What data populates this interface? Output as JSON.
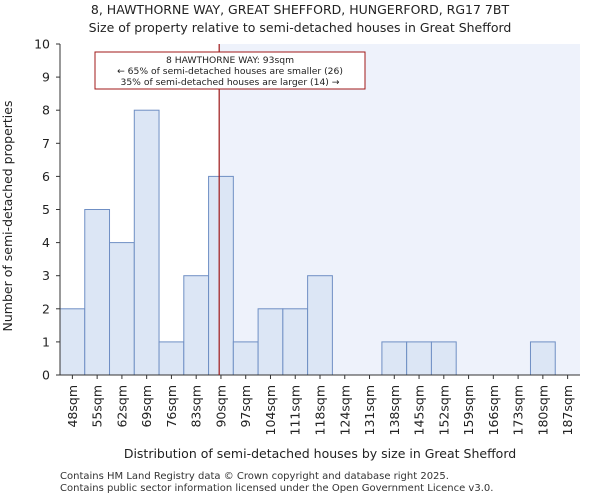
{
  "chart_data": {
    "type": "bar",
    "title": "8, HAWTHORNE WAY, GREAT SHEFFORD, HUNGERFORD, RG17 7BT",
    "subtitle": "Size of property relative to semi-detached houses in Great Shefford",
    "xlabel": "Distribution of semi-detached houses by size in Great Shefford",
    "ylabel": "Number of semi-detached properties",
    "categories": [
      "48sqm",
      "55sqm",
      "62sqm",
      "69sqm",
      "76sqm",
      "83sqm",
      "90sqm",
      "97sqm",
      "104sqm",
      "111sqm",
      "118sqm",
      "124sqm",
      "131sqm",
      "138sqm",
      "145sqm",
      "152sqm",
      "159sqm",
      "166sqm",
      "173sqm",
      "180sqm",
      "187sqm"
    ],
    "values": [
      2,
      5,
      4,
      8,
      1,
      3,
      6,
      1,
      2,
      2,
      3,
      0,
      0,
      1,
      1,
      1,
      0,
      0,
      0,
      1,
      0
    ],
    "ylim": [
      0,
      10
    ],
    "yticks": [
      0,
      1,
      2,
      3,
      4,
      5,
      6,
      7,
      8,
      9,
      10
    ],
    "grid": false,
    "subject_value_sqm": 93,
    "highlight_from_sqm": 93,
    "annotation": {
      "lines": [
        "8 HAWTHORNE WAY: 93sqm",
        "← 65% of semi-detached houses are smaller (26)",
        "35% of semi-detached houses are larger (14) →"
      ]
    },
    "colors": {
      "bar_fill": "#dce6f5",
      "bar_edge": "#6f8fc4",
      "highlight_fill": "#eef2fb",
      "marker": "#a01818",
      "annotation_border": "#a01818"
    }
  },
  "footer": {
    "line1": "Contains HM Land Registry data © Crown copyright and database right 2025.",
    "line2": "Contains public sector information licensed under the Open Government Licence v3.0."
  }
}
